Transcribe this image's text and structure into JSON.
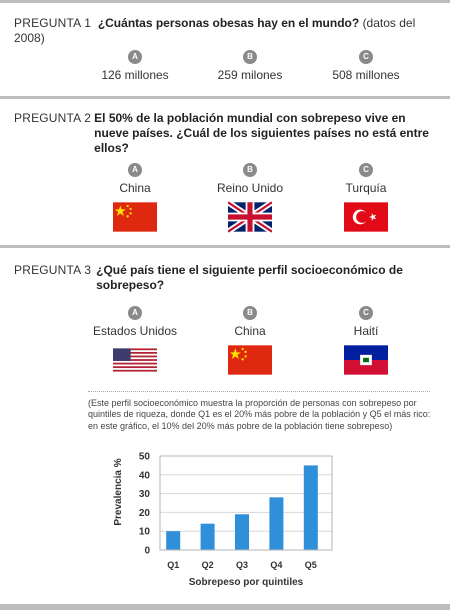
{
  "q1": {
    "number": "PREGUNTA 1",
    "question": "¿Cuántas personas obesas hay en el mundo?",
    "note": "(datos del 2008)",
    "options": [
      {
        "letter": "A",
        "label": "126 millones"
      },
      {
        "letter": "B",
        "label": "259 milones"
      },
      {
        "letter": "C",
        "label": "508 millones"
      }
    ]
  },
  "q2": {
    "number": "PREGUNTA 2",
    "question": "El 50% de la población mundial con sobrepeso vive en nueve países. ¿Cuál de los siguientes países no está entre ellos?",
    "options": [
      {
        "letter": "A",
        "label": "China",
        "flag": "china-flag"
      },
      {
        "letter": "B",
        "label": "Reino Unido",
        "flag": "uk-flag"
      },
      {
        "letter": "C",
        "label": "Turquía",
        "flag": "turkey-flag"
      }
    ]
  },
  "q3": {
    "number": "PREGUNTA 3",
    "question": "¿Qué país tiene el siguiente perfil socioeconómico de sobrepeso?",
    "options": [
      {
        "letter": "A",
        "label": "Estados Unidos",
        "flag": "usa-flag"
      },
      {
        "letter": "B",
        "label": "China",
        "flag": "china-flag"
      },
      {
        "letter": "C",
        "label": "Haití",
        "flag": "haiti-flag"
      }
    ],
    "explanation": "(Este perfil socioeconómico muestra la proporción de personas con sobrepeso por quintiles de riqueza, donde Q1 es el 20% más pobre de la población y Q5 el más rico: en este gráfico, el 10% del 20% más pobre de la población tiene sobrepeso)"
  },
  "colors": {
    "bar": "#2f8fd9",
    "rule": "#bdbdbd",
    "circle": "#8a8a8a"
  },
  "chart_data": {
    "type": "bar",
    "categories": [
      "Q1",
      "Q2",
      "Q3",
      "Q4",
      "Q5"
    ],
    "values": [
      10,
      14,
      19,
      28,
      45
    ],
    "xlabel": "Sobrepeso por quintiles",
    "ylabel": "Prevalencia %",
    "ylim": [
      0,
      50
    ],
    "yticks": [
      "0",
      "10",
      "20",
      "30",
      "40",
      "50"
    ],
    "grid": true
  }
}
